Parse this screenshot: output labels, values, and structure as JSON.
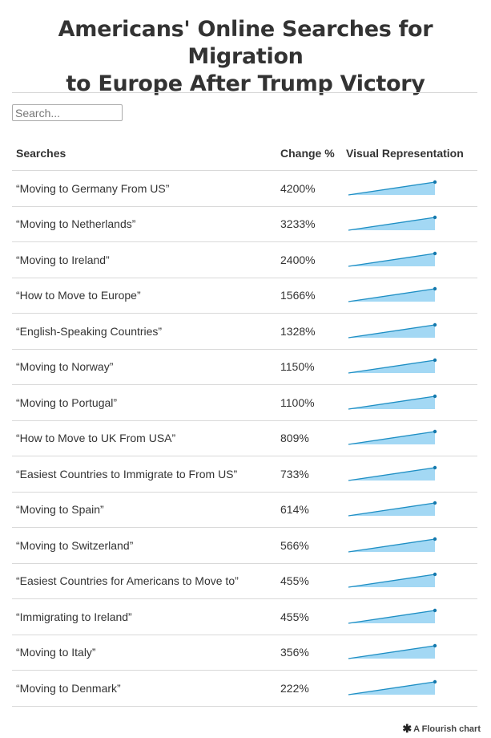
{
  "title_line1": "Americans' Online Searches for Migration",
  "title_line2": "to Europe After Trump Victory",
  "search": {
    "placeholder": "Search..."
  },
  "columns": [
    "Searches",
    "Change %",
    "Visual Representation"
  ],
  "chart_data": {
    "type": "table",
    "rows": [
      {
        "search": "“Moving to Germany From US”",
        "change": "4200%"
      },
      {
        "search": "“Moving to Netherlands”",
        "change": "3233%"
      },
      {
        "search": "“Moving to Ireland”",
        "change": "2400%"
      },
      {
        "search": "“How to Move to Europe”",
        "change": "1566%"
      },
      {
        "search": "“English-Speaking Countries”",
        "change": "1328%"
      },
      {
        "search": "“Moving to Norway”",
        "change": "1150%"
      },
      {
        "search": "“Moving to Portugal”",
        "change": "1100%"
      },
      {
        "search": "“How to Move to UK From USA”",
        "change": "809%"
      },
      {
        "search": "“Easiest Countries to Immigrate to From US”",
        "change": "733%"
      },
      {
        "search": "“Moving to Spain”",
        "change": "614%"
      },
      {
        "search": "“Moving to Switzerland”",
        "change": "566%"
      },
      {
        "search": "“Easiest Countries for Americans to Move to”",
        "change": "455%"
      },
      {
        "search": "“Immigrating to Ireland”",
        "change": "455%"
      },
      {
        "search": "“Moving to Italy”",
        "change": "356%"
      },
      {
        "search": "“Moving to Denmark”",
        "change": "222%"
      }
    ],
    "sparkline": {
      "type": "area",
      "start": 0,
      "end": 100
    }
  },
  "colors": {
    "spark_fill": "#a3d8f4",
    "spark_line": "#1f8fc4",
    "spark_dot": "#1479ad"
  },
  "footer": {
    "logo_icon": "flourish-logo-icon",
    "label": "A Flourish chart"
  }
}
